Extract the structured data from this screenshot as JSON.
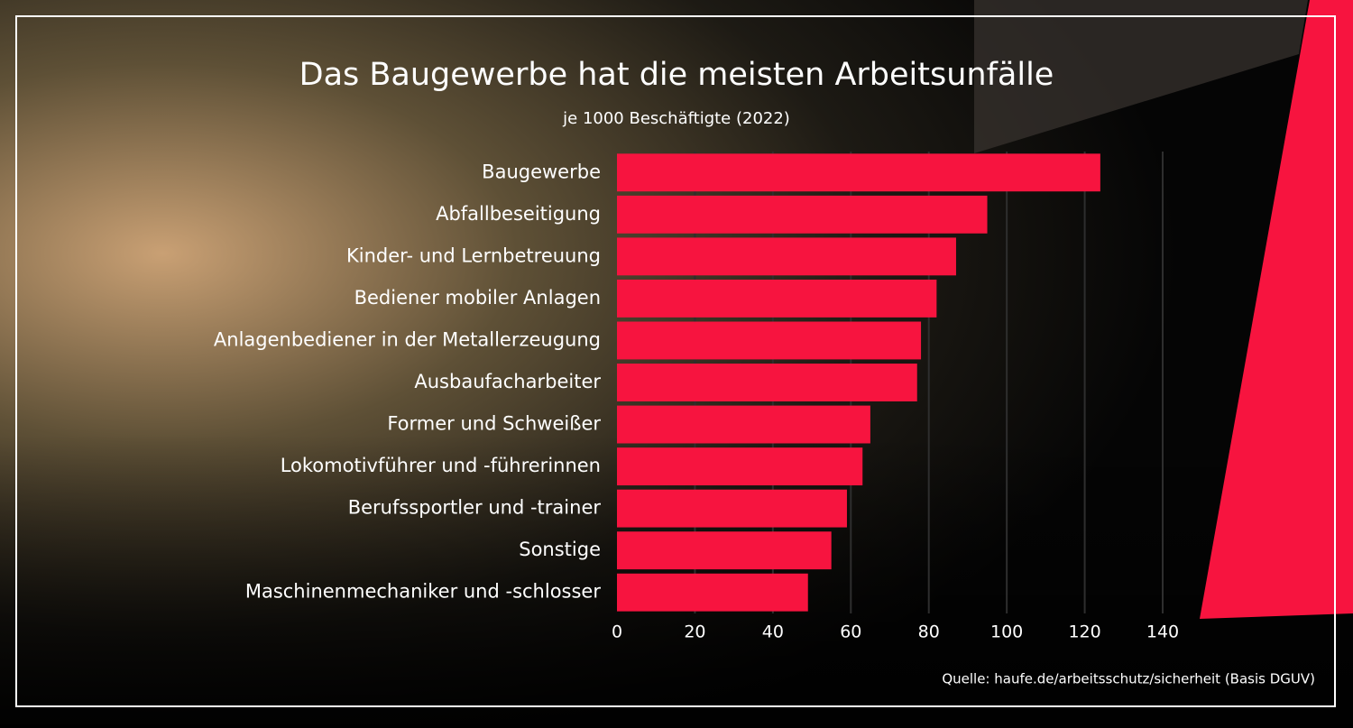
{
  "chart_data": {
    "type": "bar",
    "orientation": "horizontal",
    "title": "Das Baugewerbe hat die meisten Arbeitsunfälle",
    "subtitle": "je 1000 Beschäftigte (2022)",
    "source": "Quelle: haufe.de/arbeitsschutz/sicherheit (Basis DGUV)",
    "categories": [
      "Baugewerbe",
      "Abfallbeseitigung",
      "Kinder- und Lernbetreuung",
      "Bediener mobiler Anlagen",
      "Anlagenbediener in der Metallerzeugung",
      "Ausbaufacharbeiter",
      "Former und Schweißer",
      "Lokomotivführer und -führerinnen",
      "Berufssportler und -trainer",
      "Sonstige",
      "Maschinenmechaniker und -schlosser"
    ],
    "values": [
      124,
      95,
      87,
      82,
      78,
      77,
      65,
      63,
      59,
      55,
      49
    ],
    "color": "#f7143f",
    "xlim": [
      0,
      140
    ],
    "xticks": [
      0,
      20,
      40,
      60,
      80,
      100,
      120,
      140
    ],
    "grid": true
  }
}
